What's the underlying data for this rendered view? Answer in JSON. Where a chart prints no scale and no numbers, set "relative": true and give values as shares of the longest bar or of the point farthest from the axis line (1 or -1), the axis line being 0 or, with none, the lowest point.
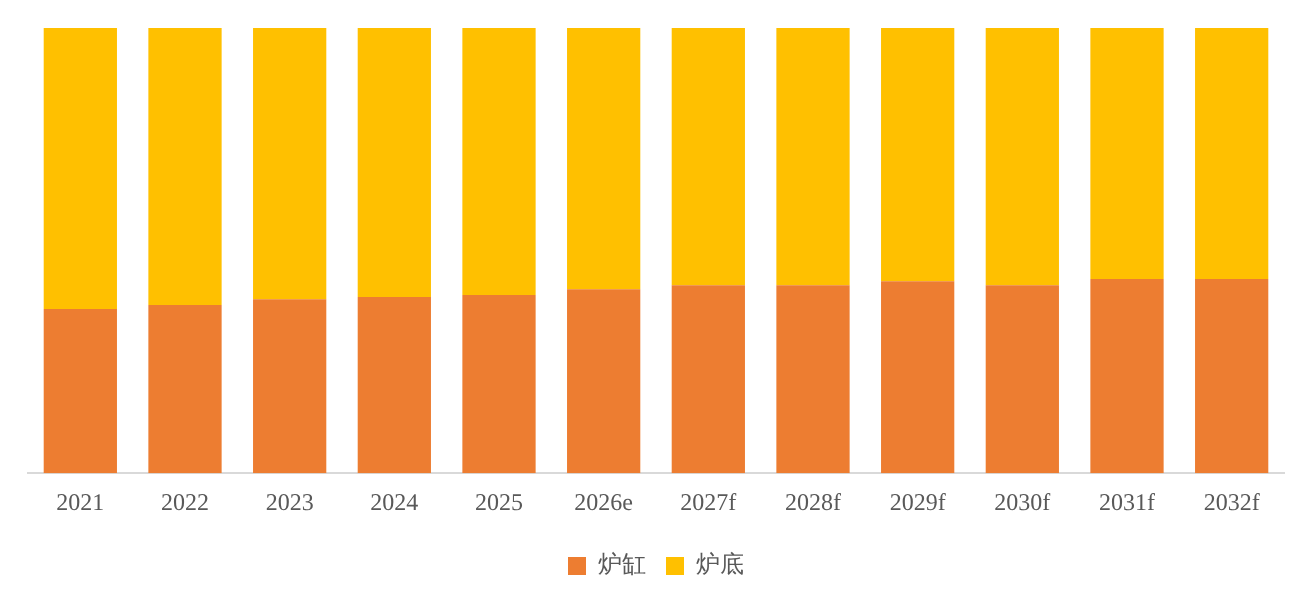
{
  "chart_data": {
    "type": "bar",
    "stacked": true,
    "relative": true,
    "legend": "bottom",
    "grid": false,
    "categories": [
      "2021",
      "2022",
      "2023",
      "2024",
      "2025",
      "2026e",
      "2027f",
      "2028f",
      "2029f",
      "2030f",
      "2031f",
      "2032f"
    ],
    "series": [
      {
        "name": "炉缸",
        "color": "#ed7d31",
        "values": [
          0.369,
          0.378,
          0.391,
          0.396,
          0.4,
          0.413,
          0.422,
          0.422,
          0.431,
          0.422,
          0.436,
          0.436
        ]
      },
      {
        "name": "炉底",
        "color": "#ffc000",
        "values": [
          0.631,
          0.622,
          0.609,
          0.604,
          0.6,
          0.587,
          0.578,
          0.578,
          0.569,
          0.578,
          0.564,
          0.564
        ]
      }
    ]
  }
}
